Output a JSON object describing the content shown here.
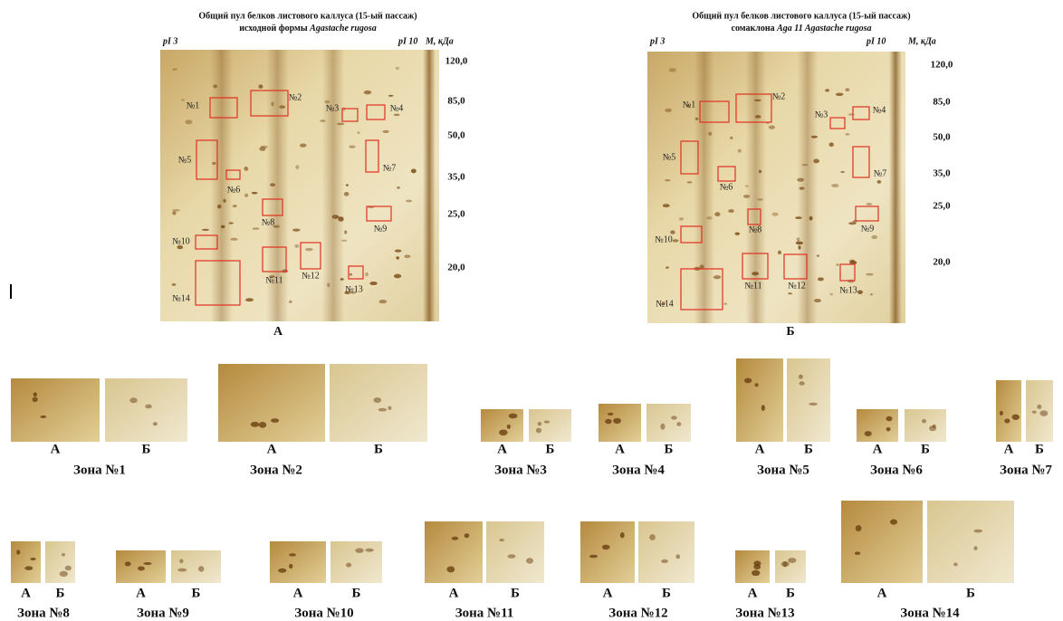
{
  "gels": [
    {
      "title_line1": "Общий пул белков листового каллуса (15-ый пассаж)",
      "title_line2": "исходной формы",
      "species": "Agastache rugosa",
      "pi_left": "pI 3",
      "pi_right": "pI 10",
      "mass_label": "M, кДа",
      "mass_ticks": [
        "120,0",
        "85,0",
        "50,0",
        "35,0",
        "25,0",
        "20,0"
      ],
      "zones": [
        "№1",
        "№2",
        "№3",
        "№4",
        "№5",
        "№6",
        "№7",
        "№8",
        "№9",
        "№10",
        "№11",
        "№12",
        "№13",
        "№14"
      ],
      "panel_label": "А"
    },
    {
      "title_line1": "Общий пул белков листового каллуса (15-ый пассаж)",
      "title_line2": "сомаклона",
      "species": "Aga 11 Agastache rugosa",
      "pi_left": "pI 3",
      "pi_right": "pI 10",
      "mass_label": "M, кДа",
      "mass_ticks": [
        "120,0",
        "85,0",
        "50,0",
        "35,0",
        "25,0",
        "20,0"
      ],
      "zones": [
        "№1",
        "№2",
        "№3",
        "№4",
        "№5",
        "№6",
        "№7",
        "№8",
        "№9",
        "№10",
        "№11",
        "№12",
        "№13",
        "№14"
      ],
      "panel_label": "Б"
    }
  ],
  "zones": [
    {
      "a": "А",
      "b": "Б",
      "title": "Зона №1"
    },
    {
      "a": "А",
      "b": "Б",
      "title": "Зона №2"
    },
    {
      "a": "А",
      "b": "Б",
      "title": "Зона №3"
    },
    {
      "a": "А",
      "b": "Б",
      "title": "Зона №4"
    },
    {
      "a": "А",
      "b": "Б",
      "title": "Зона №5"
    },
    {
      "a": "А",
      "b": "Б",
      "title": "Зона №6"
    },
    {
      "a": "А",
      "b": "Б",
      "title": "Зона №7"
    },
    {
      "a": "А",
      "b": "Б",
      "title": "Зона №8"
    },
    {
      "a": "А",
      "b": "Б",
      "title": "Зона №9"
    },
    {
      "a": "А",
      "b": "Б",
      "title": "Зона №10"
    },
    {
      "a": "А",
      "b": "Б",
      "title": "Зона №11"
    },
    {
      "a": "А",
      "b": "Б",
      "title": "Зона №12"
    },
    {
      "a": "А",
      "b": "Б",
      "title": "Зона №13"
    },
    {
      "a": "А",
      "b": "Б",
      "title": "Зона №14"
    }
  ]
}
